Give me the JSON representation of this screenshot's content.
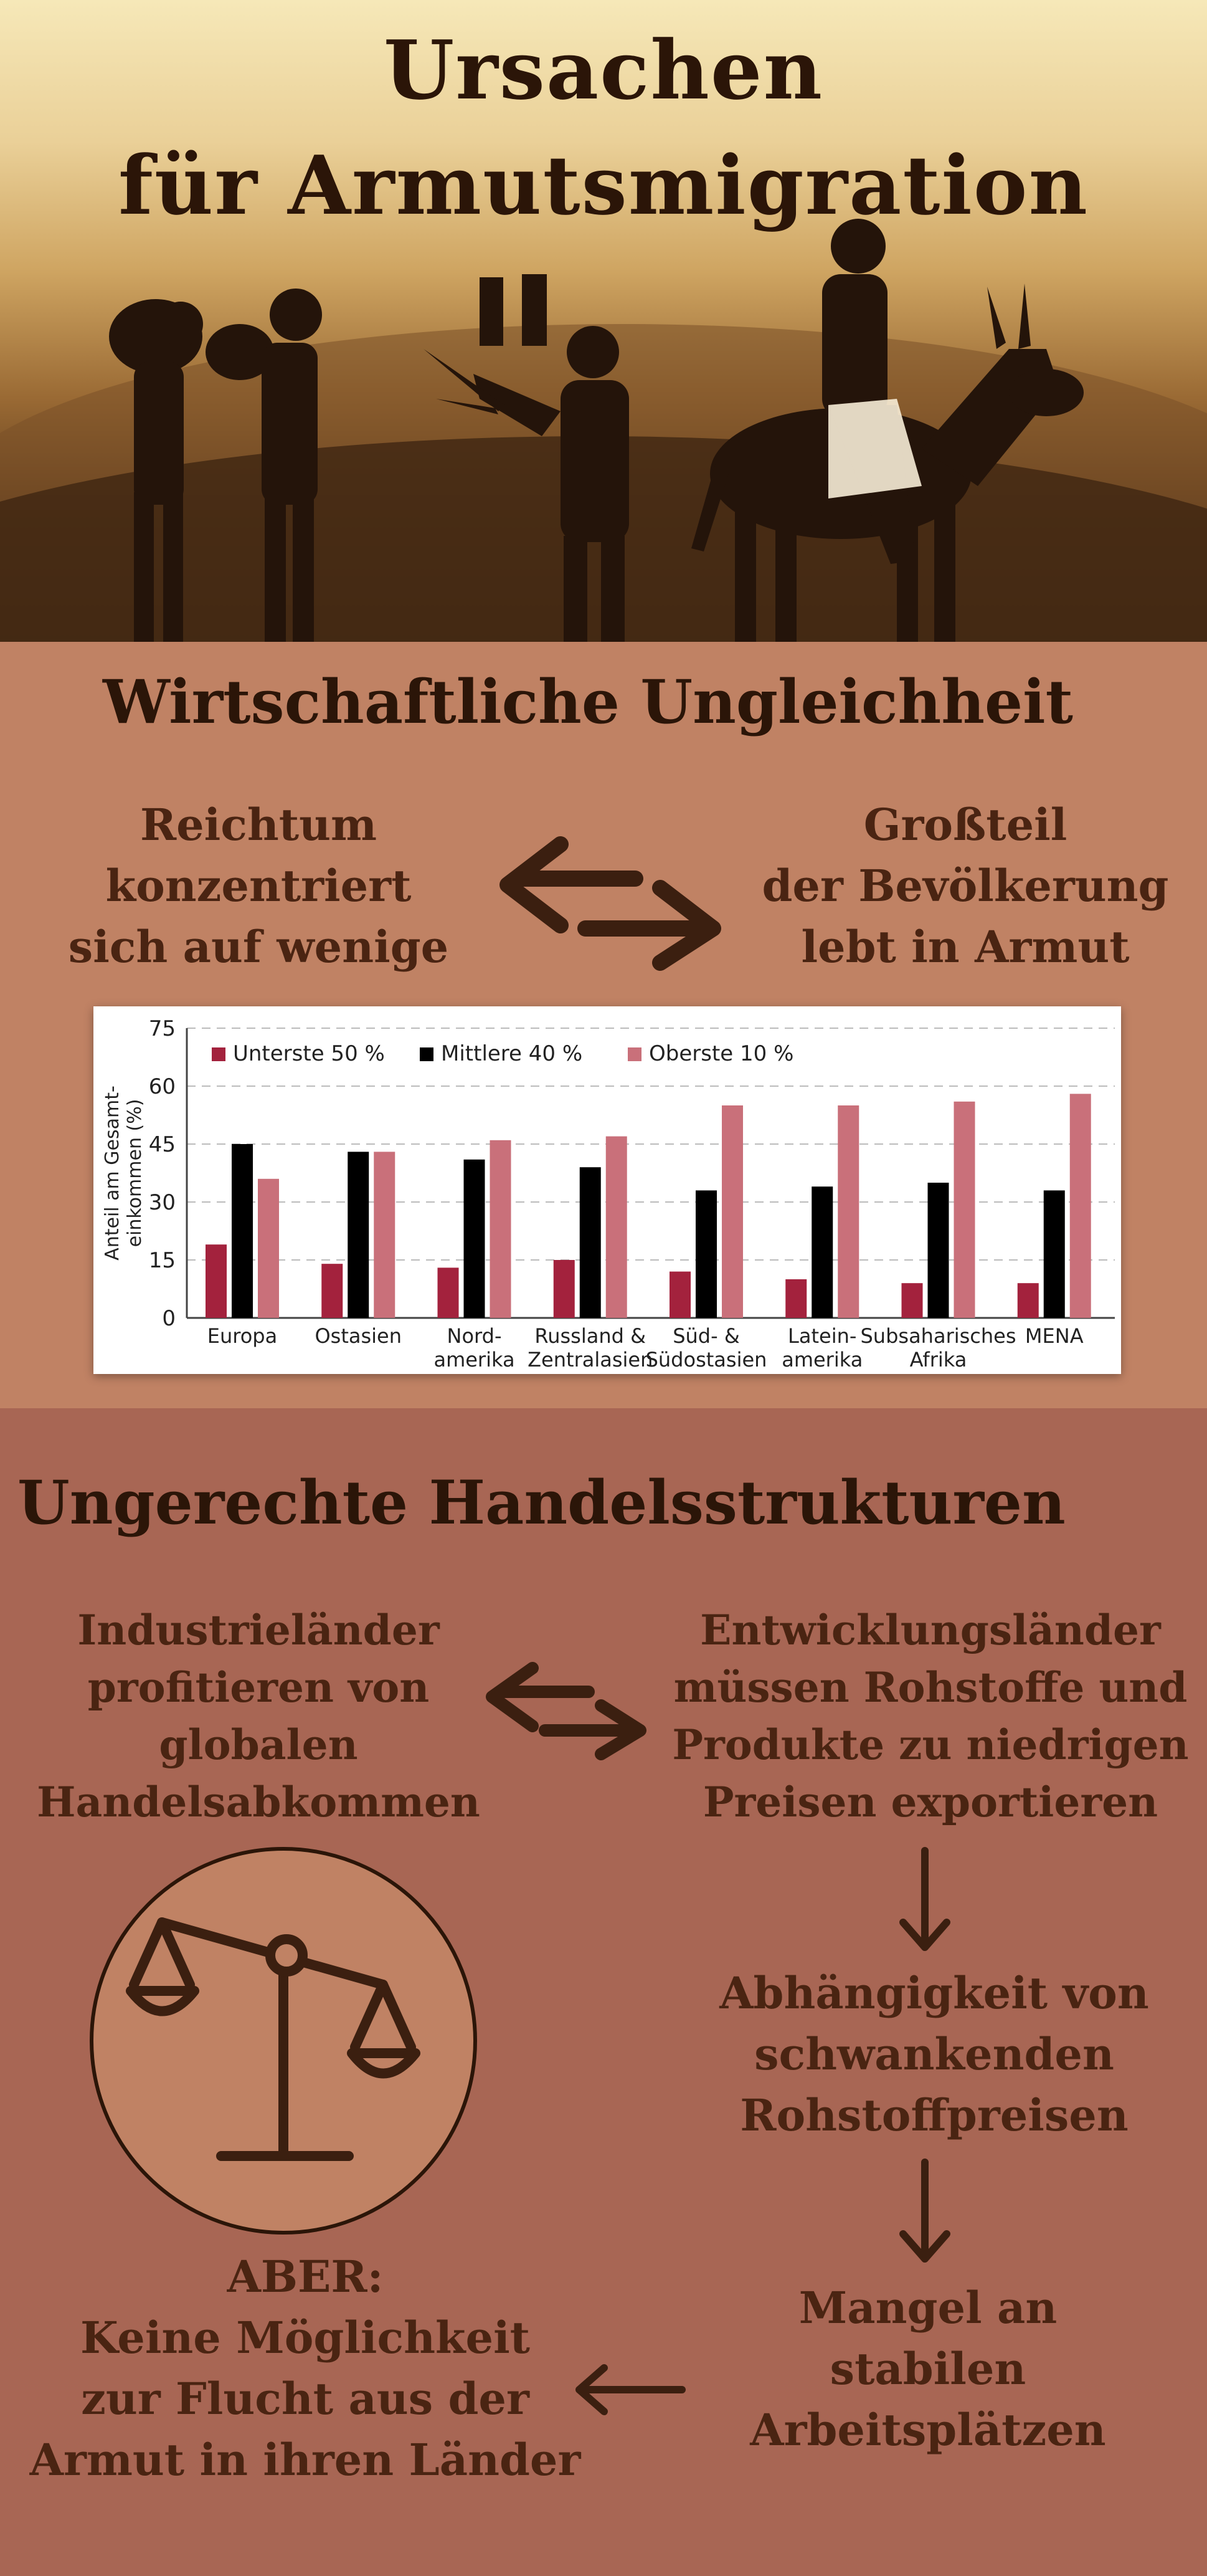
{
  "hero": {
    "title_line1": "Ursachen",
    "title_line2": "für Armutsmigration"
  },
  "section_inequality": {
    "title": "Wirtschaftliche Ungleichheit",
    "left_text": [
      "Reichtum",
      "konzentriert",
      "sich auf wenige"
    ],
    "right_text": [
      "Großteil",
      "der Bevölkerung",
      "lebt in Armut"
    ]
  },
  "chart_data": {
    "type": "bar",
    "ylabel_lines": [
      "Anteil am Gesamt-",
      "einkommen (%)"
    ],
    "ylim": [
      0,
      75
    ],
    "yticks": [
      0,
      15,
      30,
      45,
      60,
      75
    ],
    "grid": true,
    "legend_position": "top-left",
    "categories": [
      [
        "Europa"
      ],
      [
        "Ostasien"
      ],
      [
        "Nord-",
        "amerika"
      ],
      [
        "Russland &",
        "Zentralasien"
      ],
      [
        "Süd- &",
        "Südostasien"
      ],
      [
        "Latein-",
        "amerika"
      ],
      [
        "Subsaharisches",
        "Afrika"
      ],
      [
        "MENA"
      ]
    ],
    "series": [
      {
        "name": "Unterste 50 %",
        "color": "#a3223d",
        "values": [
          19,
          14,
          13,
          15,
          12,
          10,
          9,
          9
        ]
      },
      {
        "name": "Mittlere 40 %",
        "color": "#000000",
        "values": [
          45,
          43,
          41,
          39,
          33,
          34,
          35,
          33
        ]
      },
      {
        "name": "Oberste 10 %",
        "color": "#c9707a",
        "values": [
          36,
          43,
          46,
          47,
          55,
          55,
          56,
          58
        ]
      }
    ]
  },
  "section_trade": {
    "title": "Ungerechte Handelsstrukturen",
    "left_text": [
      "Industrieländer",
      "profitieren von",
      "globalen",
      "Handelsabkommen"
    ],
    "right_text": [
      "Entwicklungsländer",
      "müssen Rohstoffe und",
      "Produkte zu niedrigen",
      "Preisen exportieren"
    ],
    "step2_text": [
      "Abhängigkeit von",
      "schwankenden",
      "Rohstoffpreisen"
    ],
    "step3_text": [
      "Mangel an",
      "stabilen",
      "Arbeitsplätzen"
    ],
    "conclusion_text": [
      "ABER:",
      "Keine Möglichkeit",
      "zur Flucht aus der",
      "Armut in ihren Länder"
    ],
    "icon": "scale-icon",
    "circle_color": "#c08264"
  }
}
